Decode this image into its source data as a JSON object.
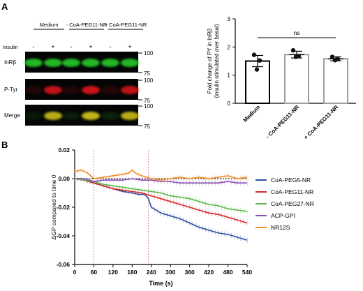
{
  "panels": {
    "a": "A",
    "b": "B"
  },
  "blot": {
    "groups": [
      "Medium",
      "- CoA-PEG11-NR",
      "+ CoA-PEG11-NR"
    ],
    "insulin_label": "Insulin",
    "insulin_signs": [
      "-",
      "+",
      "-",
      "+",
      "-",
      "+"
    ],
    "rows": [
      {
        "label": "InRβ",
        "color": "green",
        "intensity": [
          0.85,
          0.85,
          0.85,
          0.85,
          0.85,
          0.85
        ]
      },
      {
        "label": "P-Tyr",
        "color": "red",
        "intensity": [
          0.12,
          0.85,
          0.12,
          0.9,
          0.15,
          0.85
        ]
      },
      {
        "label": "Merge",
        "color": "merge",
        "intensity": [
          0.1,
          0.85,
          0.12,
          0.9,
          0.15,
          0.85
        ]
      }
    ],
    "mw_markers": [
      "100",
      "75"
    ]
  },
  "chart_data": [
    {
      "type": "bar",
      "categories": [
        "Medium",
        "- CoA-PEG11-NR",
        "+ CoA-PEG11-NR"
      ],
      "values": [
        1.5,
        1.73,
        1.58
      ],
      "errors": [
        0.2,
        0.12,
        0.07
      ],
      "points": [
        [
          1.72,
          1.52,
          1.2
        ],
        [
          1.88,
          1.68,
          1.65
        ],
        [
          1.65,
          1.57,
          1.53
        ]
      ],
      "bar_edge_colors": [
        "#000000",
        "#9e9e9e",
        "#9e9e9e"
      ],
      "ylabel": "Fold change of PY in InRβ (insulin stimulated over basal)",
      "ylim": [
        0,
        3
      ],
      "yticks": [
        "0",
        "1",
        "2",
        "3"
      ],
      "annotation": "ns"
    },
    {
      "type": "line",
      "xlabel": "Time (s)",
      "ylabel": "ΔGP compared to time 0",
      "xlim": [
        0,
        540
      ],
      "ylim": [
        -0.06,
        0.02
      ],
      "xticks": [
        "0",
        "60",
        "120",
        "180",
        "240",
        "300",
        "360",
        "420",
        "480",
        "540"
      ],
      "yticks": [
        "0.02",
        "0.00",
        "-0.02",
        "-0.04",
        "-0.06"
      ],
      "vlines": [
        60,
        231
      ],
      "hline": 0,
      "series": [
        {
          "name": "CoA-PEG5-NR",
          "color": "#2e4fa3",
          "x": [
            0,
            30,
            60,
            90,
            120,
            150,
            180,
            200,
            220,
            231,
            240,
            270,
            300,
            330,
            360,
            390,
            420,
            450,
            480,
            510,
            540
          ],
          "y": [
            0,
            -0.001,
            -0.003,
            -0.005,
            -0.007,
            -0.009,
            -0.01,
            -0.011,
            -0.011,
            -0.014,
            -0.02,
            -0.024,
            -0.026,
            -0.028,
            -0.031,
            -0.034,
            -0.036,
            -0.038,
            -0.039,
            -0.041,
            -0.043
          ]
        },
        {
          "name": "CoA-PEG11-NR",
          "color": "#d62828",
          "x": [
            0,
            30,
            60,
            90,
            120,
            150,
            180,
            210,
            240,
            270,
            300,
            330,
            360,
            390,
            420,
            450,
            480,
            510,
            540
          ],
          "y": [
            0,
            -0.001,
            -0.003,
            -0.005,
            -0.007,
            -0.008,
            -0.009,
            -0.01,
            -0.012,
            -0.014,
            -0.016,
            -0.018,
            -0.02,
            -0.022,
            -0.024,
            -0.025,
            -0.027,
            -0.029,
            -0.031
          ]
        },
        {
          "name": "CoA-PEG27-NR",
          "color": "#5ab948",
          "x": [
            0,
            30,
            60,
            90,
            120,
            150,
            180,
            210,
            240,
            270,
            300,
            330,
            360,
            390,
            420,
            450,
            480,
            510,
            540
          ],
          "y": [
            0,
            -0.001,
            -0.002,
            -0.004,
            -0.005,
            -0.006,
            -0.007,
            -0.008,
            -0.009,
            -0.01,
            -0.012,
            -0.013,
            -0.014,
            -0.016,
            -0.018,
            -0.019,
            -0.021,
            -0.022,
            -0.023
          ]
        },
        {
          "name": "ACP-GPI",
          "color": "#8a4fb0",
          "x": [
            0,
            30,
            60,
            90,
            120,
            150,
            180,
            210,
            240,
            270,
            300,
            330,
            360,
            390,
            420,
            450,
            480,
            510,
            540
          ],
          "y": [
            0,
            0,
            -0.002,
            -0.001,
            -0.001,
            -0.001,
            0,
            -0.001,
            -0.001,
            -0.002,
            -0.002,
            -0.003,
            -0.003,
            -0.003,
            -0.003,
            -0.003,
            -0.002,
            -0.003,
            -0.003
          ]
        },
        {
          "name": "NR12S",
          "color": "#f08c28",
          "x": [
            0,
            20,
            40,
            60,
            90,
            120,
            150,
            170,
            180,
            190,
            210,
            240,
            270,
            300,
            330,
            360,
            390,
            420,
            450,
            480,
            510,
            540
          ],
          "y": [
            0.005,
            0.006,
            0.004,
            0,
            0.001,
            0.002,
            0.003,
            0.004,
            0.006,
            0.004,
            0.002,
            0,
            -0.001,
            0,
            0.001,
            0,
            0.001,
            0,
            0.001,
            0.002,
            0,
            0.001
          ]
        }
      ]
    }
  ]
}
